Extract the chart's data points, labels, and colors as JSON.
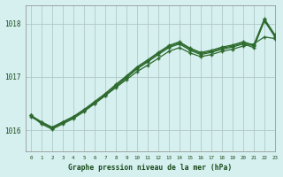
{
  "title": "Graphe pression niveau de la mer (hPa)",
  "bg_color": "#d6f0f0",
  "grid_color": "#b0c8c8",
  "line_color": "#2d6a2d",
  "xlim": [
    -0.5,
    23
  ],
  "ylim": [
    1015.6,
    1018.35
  ],
  "yticks": [
    1016,
    1017,
    1018
  ],
  "xticks": [
    0,
    1,
    2,
    3,
    4,
    5,
    6,
    7,
    8,
    9,
    10,
    11,
    12,
    13,
    14,
    15,
    16,
    17,
    18,
    19,
    20,
    21,
    22,
    23
  ],
  "series": [
    [
      1016.25,
      1016.15,
      1016.05,
      1016.15,
      1016.25,
      1016.38,
      1016.5,
      1016.65,
      1016.8,
      1016.95,
      1017.1,
      1017.22,
      1017.35,
      1017.48,
      1017.55,
      1017.45,
      1017.38,
      1017.42,
      1017.48,
      1017.52,
      1017.58,
      1017.62,
      1017.75,
      1017.72
    ],
    [
      1016.28,
      1016.12,
      1016.02,
      1016.12,
      1016.22,
      1016.35,
      1016.5,
      1016.65,
      1016.82,
      1016.98,
      1017.15,
      1017.28,
      1017.42,
      1017.55,
      1017.62,
      1017.5,
      1017.42,
      1017.46,
      1017.52,
      1017.56,
      1017.62,
      1017.55,
      1018.05,
      1017.75
    ],
    [
      1016.28,
      1016.14,
      1016.04,
      1016.14,
      1016.24,
      1016.37,
      1016.52,
      1016.67,
      1016.84,
      1017.0,
      1017.17,
      1017.3,
      1017.44,
      1017.57,
      1017.64,
      1017.52,
      1017.44,
      1017.48,
      1017.54,
      1017.58,
      1017.64,
      1017.58,
      1018.07,
      1017.77
    ],
    [
      1016.28,
      1016.16,
      1016.06,
      1016.16,
      1016.26,
      1016.39,
      1016.54,
      1016.69,
      1016.86,
      1017.02,
      1017.19,
      1017.32,
      1017.46,
      1017.59,
      1017.66,
      1017.54,
      1017.46,
      1017.5,
      1017.56,
      1017.6,
      1017.66,
      1017.6,
      1018.09,
      1017.79
    ]
  ]
}
